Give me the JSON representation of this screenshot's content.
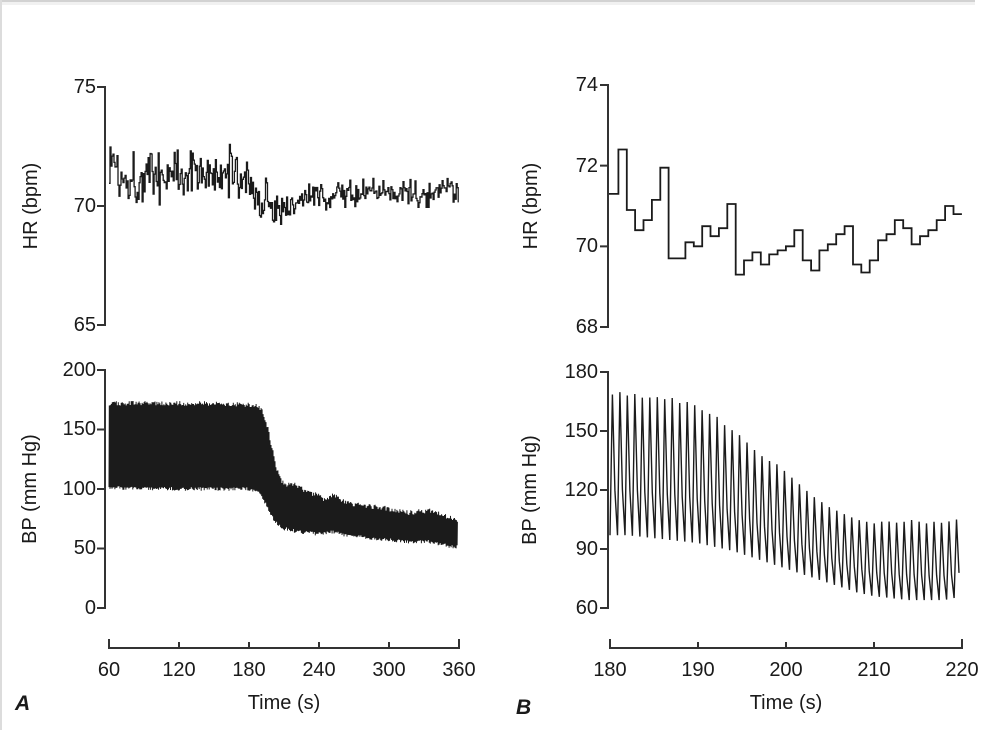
{
  "figure": {
    "panel_a_label": "A",
    "panel_b_label": "B"
  },
  "colors": {
    "trace": "#1b1b1b",
    "axis": "#333333",
    "text": "#1a1a1a"
  },
  "chart_data": [
    {
      "id": "panel_a_hr",
      "panel": "A",
      "type": "line",
      "signal": "heart rate, per-beat, noisy",
      "ylabel": "HR (bpm)",
      "xlim": [
        60,
        360
      ],
      "ylim": [
        65,
        75
      ],
      "yticks": [
        65,
        70,
        75
      ],
      "grid": false,
      "series": [
        {
          "name": "HR",
          "beat_interval_s": 0.86,
          "trend": [
            [
              60,
              71.8
            ],
            [
              64,
              72.1
            ],
            [
              68,
              71.2
            ],
            [
              75,
              71.3
            ],
            [
              85,
              71.1
            ],
            [
              95,
              71.4
            ],
            [
              105,
              71.2
            ],
            [
              115,
              71.5
            ],
            [
              125,
              71.3
            ],
            [
              135,
              71.6
            ],
            [
              145,
              71.4
            ],
            [
              152,
              70.9
            ],
            [
              158,
              71.1
            ],
            [
              165,
              71.6
            ],
            [
              172,
              71.3
            ],
            [
              178,
              71.2
            ],
            [
              184,
              70.5
            ],
            [
              190,
              70.0
            ],
            [
              194,
              70.5
            ],
            [
              198,
              70.1
            ],
            [
              203,
              69.8
            ],
            [
              208,
              69.9
            ],
            [
              214,
              70.1
            ],
            [
              222,
              70.2
            ],
            [
              232,
              70.4
            ],
            [
              242,
              70.3
            ],
            [
              252,
              70.5
            ],
            [
              262,
              70.6
            ],
            [
              272,
              70.4
            ],
            [
              282,
              70.7
            ],
            [
              292,
              70.5
            ],
            [
              302,
              70.6
            ],
            [
              312,
              70.7
            ],
            [
              322,
              70.4
            ],
            [
              332,
              70.6
            ],
            [
              342,
              70.4
            ],
            [
              352,
              70.8
            ],
            [
              360,
              70.5
            ]
          ],
          "noise_amplitude": [
            [
              60,
              0.75
            ],
            [
              180,
              0.7
            ],
            [
              195,
              0.5
            ],
            [
              250,
              0.4
            ],
            [
              360,
              0.38
            ]
          ]
        }
      ]
    },
    {
      "id": "panel_a_bp",
      "panel": "A",
      "type": "line",
      "signal": "arterial blood pressure waveform, dense pulse band",
      "ylabel": "BP (mm Hg)",
      "xlabel": "Time (s)",
      "xlim": [
        60,
        360
      ],
      "ylim": [
        0,
        200
      ],
      "yticks": [
        0,
        50,
        100,
        150,
        200
      ],
      "xticks": [
        60,
        120,
        180,
        240,
        300,
        360
      ],
      "grid": false,
      "series": [
        {
          "name": "BP",
          "beat_interval_s": 0.85,
          "systolic_envelope": [
            [
              60,
              172
            ],
            [
              100,
              172
            ],
            [
              140,
              172
            ],
            [
              180,
              171
            ],
            [
              186,
              170
            ],
            [
              191,
              167
            ],
            [
              196,
              152
            ],
            [
              200,
              133
            ],
            [
              204,
              116
            ],
            [
              208,
              106
            ],
            [
              212,
              103
            ],
            [
              217,
              105
            ],
            [
              224,
              101
            ],
            [
              230,
              97
            ],
            [
              238,
              95
            ],
            [
              245,
              91
            ],
            [
              252,
              95
            ],
            [
              258,
              91
            ],
            [
              266,
              88
            ],
            [
              276,
              86
            ],
            [
              286,
              85
            ],
            [
              296,
              84
            ],
            [
              306,
              82
            ],
            [
              316,
              80
            ],
            [
              326,
              81
            ],
            [
              336,
              82
            ],
            [
              346,
              78
            ],
            [
              356,
              75
            ],
            [
              360,
              73
            ]
          ],
          "diastolic_envelope": [
            [
              60,
              101
            ],
            [
              120,
              100
            ],
            [
              180,
              100
            ],
            [
              188,
              98
            ],
            [
              193,
              90
            ],
            [
              198,
              80
            ],
            [
              203,
              72
            ],
            [
              208,
              67
            ],
            [
              214,
              66
            ],
            [
              222,
              64
            ],
            [
              232,
              63
            ],
            [
              242,
              62
            ],
            [
              252,
              64
            ],
            [
              262,
              61
            ],
            [
              272,
              60
            ],
            [
              282,
              59
            ],
            [
              292,
              58
            ],
            [
              302,
              57
            ],
            [
              312,
              56
            ],
            [
              322,
              55
            ],
            [
              332,
              56
            ],
            [
              342,
              54
            ],
            [
              352,
              52
            ],
            [
              360,
              51
            ]
          ]
        }
      ]
    },
    {
      "id": "panel_b_hr",
      "panel": "B",
      "type": "line",
      "signal": "heart rate, per-beat step trace (zoom of panel A transition)",
      "ylabel": "HR (bpm)",
      "xlim": [
        180,
        220
      ],
      "ylim": [
        68,
        74
      ],
      "yticks": [
        68,
        70,
        72,
        74
      ],
      "grid": false,
      "series": [
        {
          "name": "HR",
          "start_time_s": 180,
          "beat_duration_s": 0.952,
          "beat_values": [
            71.3,
            72.4,
            70.9,
            70.4,
            70.65,
            71.15,
            71.95,
            69.7,
            69.7,
            70.1,
            70.0,
            70.5,
            70.25,
            70.45,
            71.05,
            69.3,
            69.65,
            69.85,
            69.55,
            69.8,
            69.9,
            70.0,
            70.4,
            69.65,
            69.4,
            69.9,
            70.05,
            70.3,
            70.5,
            69.55,
            69.35,
            69.65,
            70.15,
            70.3,
            70.65,
            70.45,
            70.05,
            70.25,
            70.4,
            70.65,
            71.0,
            70.8
          ]
        }
      ]
    },
    {
      "id": "panel_b_bp",
      "panel": "B",
      "type": "line",
      "signal": "arterial blood pressure pulse waves (zoom of panel A transition)",
      "ylabel": "BP (mm Hg)",
      "xlabel": "Time (s)",
      "xlim": [
        180,
        220
      ],
      "ylim": [
        60,
        180
      ],
      "yticks": [
        60,
        90,
        120,
        150,
        180
      ],
      "xticks": [
        180,
        190,
        200,
        210,
        220
      ],
      "grid": false,
      "series": [
        {
          "name": "BP",
          "beat_interval_s": 0.85,
          "systolic_envelope": [
            [
              180,
              168
            ],
            [
              181,
              170
            ],
            [
              182,
              168
            ],
            [
              183,
              169
            ],
            [
              184,
              166
            ],
            [
              185,
              168
            ],
            [
              186,
              166
            ],
            [
              187,
              167
            ],
            [
              188,
              164
            ],
            [
              189,
              165
            ],
            [
              190,
              162
            ],
            [
              191,
              159
            ],
            [
              192,
              158
            ],
            [
              193,
              153
            ],
            [
              194,
              150
            ],
            [
              195,
              147
            ],
            [
              196,
              142
            ],
            [
              197,
              138
            ],
            [
              198,
              135
            ],
            [
              199,
              133
            ],
            [
              200,
              129
            ],
            [
              201,
              125
            ],
            [
              202,
              121
            ],
            [
              203,
              117
            ],
            [
              204,
              114
            ],
            [
              205,
              111
            ],
            [
              206,
              109
            ],
            [
              207,
              107
            ],
            [
              208,
              105
            ],
            [
              209,
              104
            ],
            [
              210,
              103
            ],
            [
              211,
              104
            ],
            [
              212,
              104
            ],
            [
              213,
              103
            ],
            [
              214,
              105
            ],
            [
              215,
              104
            ],
            [
              216,
              103
            ],
            [
              217,
              104
            ],
            [
              218,
              103
            ],
            [
              219,
              105
            ],
            [
              220,
              105
            ]
          ],
          "diastolic_envelope": [
            [
              180,
              97
            ],
            [
              182,
              97
            ],
            [
              184,
              96
            ],
            [
              186,
              95
            ],
            [
              188,
              94
            ],
            [
              190,
              93
            ],
            [
              192,
              91
            ],
            [
              194,
              89
            ],
            [
              196,
              86
            ],
            [
              198,
              83
            ],
            [
              200,
              80
            ],
            [
              202,
              77
            ],
            [
              204,
              74
            ],
            [
              206,
              71
            ],
            [
              208,
              68
            ],
            [
              210,
              66
            ],
            [
              212,
              65
            ],
            [
              214,
              64
            ],
            [
              216,
              64
            ],
            [
              218,
              64
            ],
            [
              220,
              66
            ]
          ]
        }
      ]
    }
  ]
}
